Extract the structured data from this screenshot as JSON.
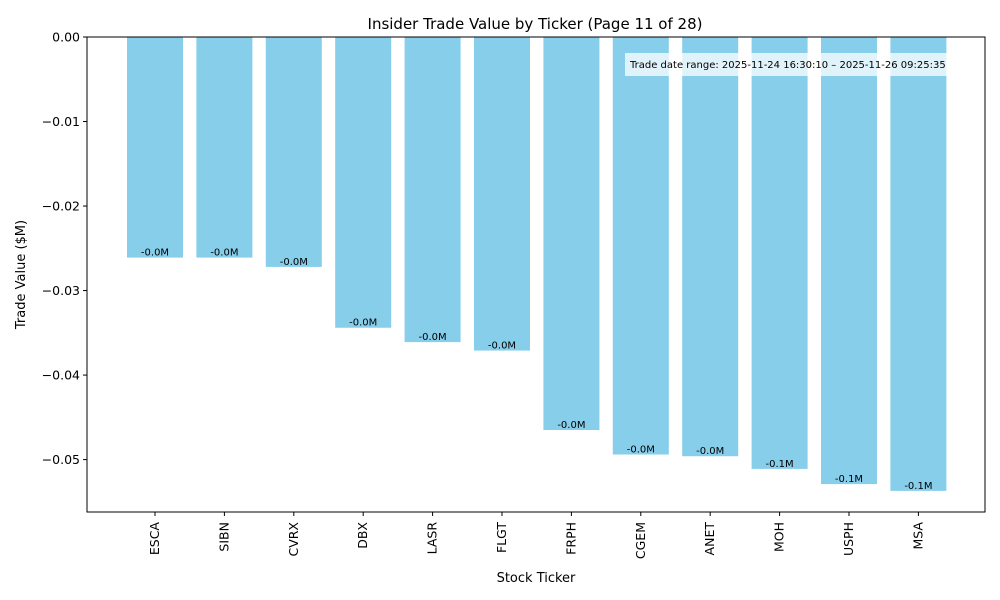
{
  "chart_data": {
    "type": "bar",
    "title": "Insider Trade Value by Ticker (Page 11 of 28)",
    "xlabel": "Stock Ticker",
    "ylabel": "Trade Value ($M)",
    "ylim": [
      -0.0562,
      0.0
    ],
    "yticks": [
      0.0,
      -0.01,
      -0.02,
      -0.03,
      -0.04,
      -0.05
    ],
    "ytick_labels": [
      "0.00",
      "−0.01",
      "−0.02",
      "−0.03",
      "−0.04",
      "−0.05"
    ],
    "categories": [
      "ESCA",
      "SIBN",
      "CVRX",
      "DBX",
      "LASR",
      "FLGT",
      "FRPH",
      "CGEM",
      "ANET",
      "MOH",
      "USPH",
      "MSA"
    ],
    "values": [
      -0.0261,
      -0.0261,
      -0.0272,
      -0.0344,
      -0.0361,
      -0.0371,
      -0.0465,
      -0.0494,
      -0.0496,
      -0.0511,
      -0.0529,
      -0.0537
    ],
    "data_labels": [
      "-0.0M",
      "-0.0M",
      "-0.0M",
      "-0.0M",
      "-0.0M",
      "-0.0M",
      "-0.0M",
      "-0.0M",
      "-0.0M",
      "-0.1M",
      "-0.1M",
      "-0.1M"
    ],
    "bar_color": "#87ceeb",
    "annotation": "Trade date range: 2025-11-24 16:30:10 – 2025-11-26 09:25:35",
    "grid": false,
    "legend": "none"
  }
}
